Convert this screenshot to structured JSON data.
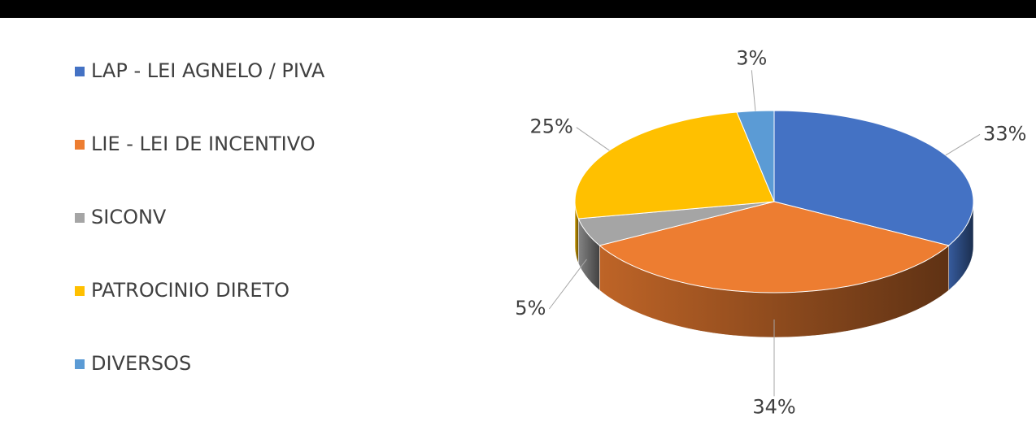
{
  "chart_data": {
    "type": "pie",
    "categories": [
      "LAP - LEI AGNELO / PIVA",
      "LIE - LEI DE INCENTIVO",
      "SICONV",
      "PATROCINIO DIRETO",
      "DIVERSOS"
    ],
    "values": [
      33,
      34,
      5,
      25,
      3
    ],
    "value_labels": [
      "33%",
      "34%",
      "5%",
      "25%",
      "3%"
    ],
    "colors": [
      "#4472c4",
      "#ed7d31",
      "#a5a5a5",
      "#ffc000",
      "#5b9bd5"
    ],
    "legend": "left"
  }
}
